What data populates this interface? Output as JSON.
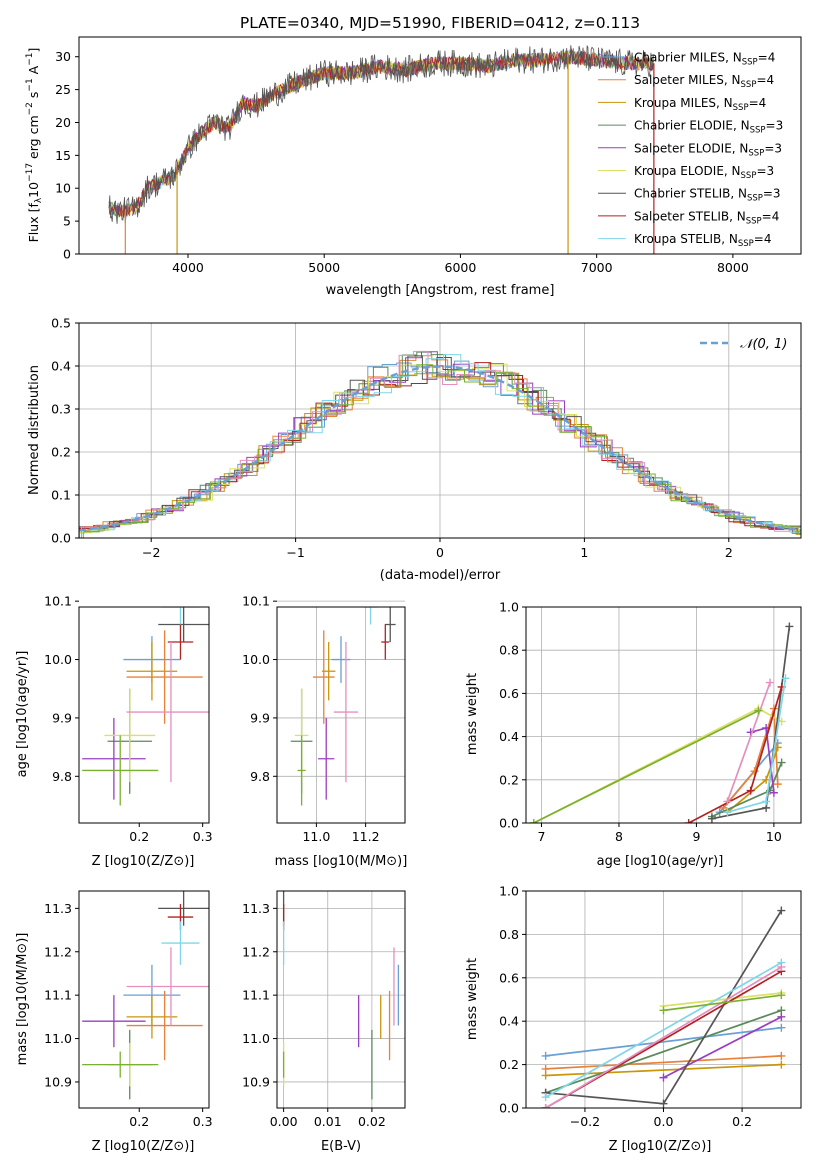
{
  "chart_data": [
    {
      "type": "line",
      "title": "PLATE=0340, MJD=51990, FIBERID=0412, z=0.113",
      "xlabel": "wavelength [Angstrom, rest frame]",
      "ylabel": "Flux [f_λ 10^-17 erg cm^-2 s^-1 A^-1]",
      "xlim": [
        3200,
        8500
      ],
      "ylim": [
        0,
        33
      ],
      "xticks": [
        "4000",
        "5000",
        "6000",
        "7000",
        "8000"
      ],
      "yticks": [
        "0",
        "5",
        "10",
        "15",
        "20",
        "25",
        "30"
      ],
      "legend_position": "top-right",
      "series": [
        {
          "name": "Chabrier MILES, N_SSP=4",
          "color": "#6a9fd4"
        },
        {
          "name": "Salpeter MILES, N_SSP=4",
          "color": "#e8823a"
        },
        {
          "name": "Kroupa MILES, N_SSP=4",
          "color": "#c8960a"
        },
        {
          "name": "Chabrier ELODIE, N_SSP=3",
          "color": "#5a8a5a"
        },
        {
          "name": "Salpeter ELODIE, N_SSP=3",
          "color": "#9a3fc0"
        },
        {
          "name": "Kroupa ELODIE, N_SSP=3",
          "color": "#dde066"
        },
        {
          "name": "Chabrier STELIB, N_SSP=3",
          "color": "#555555"
        },
        {
          "name": "Salpeter STELIB, N_SSP=4",
          "color": "#b22222"
        },
        {
          "name": "Kroupa STELIB, N_SSP=4",
          "color": "#7fd6e8"
        }
      ],
      "continuum": {
        "x": [
          3420,
          3500,
          3600,
          3650,
          3700,
          3800,
          3900,
          3950,
          4000,
          4100,
          4200,
          4300,
          4400,
          4500,
          4600,
          4800,
          5000,
          5200,
          5400,
          5600,
          5800,
          6000,
          6200,
          6400,
          6600,
          6800,
          7000,
          7200,
          7400
        ],
        "y": [
          7,
          6.5,
          6.8,
          8,
          10,
          11,
          12,
          14,
          16,
          18.5,
          20,
          19,
          23,
          22.5,
          24,
          26,
          27.5,
          27.5,
          28.5,
          28,
          29,
          29,
          28.5,
          29.5,
          29.5,
          30,
          29.5,
          29,
          29
        ]
      }
    },
    {
      "type": "line",
      "xlabel": "(data-model)/error",
      "ylabel": "Normed distribution",
      "xlim": [
        -2.5,
        2.5
      ],
      "ylim": [
        0,
        0.5
      ],
      "xticks": [
        "−2",
        "−1",
        "0",
        "1",
        "2"
      ],
      "yticks": [
        "0.0",
        "0.1",
        "0.2",
        "0.3",
        "0.4",
        "0.5"
      ],
      "legend_position": "top-right",
      "reference": {
        "name": "N(0,1)",
        "label": "𝒩(0, 1)",
        "color": "#6a9fd4",
        "mean": 0,
        "sigma": 1
      }
    },
    {
      "type": "scatter",
      "xlabel": "Z [log10(Z/Z⊙)]",
      "ylabel": "age  [log10(age/yr)]",
      "xlim": [
        0.105,
        0.31
      ],
      "ylim": [
        9.72,
        10.09
      ],
      "xticks": [
        "0.2",
        "0.3"
      ],
      "yticks": [
        "9.8",
        "9.9",
        "10.0",
        "10.1"
      ]
    },
    {
      "type": "scatter",
      "xlabel": "mass [log10(M/M⊙)]",
      "xlim": [
        10.84,
        11.36
      ],
      "ylim": [
        9.72,
        10.09
      ],
      "xticks": [
        "11.0",
        "11.2"
      ],
      "yticks": [
        "9.8",
        "9.9",
        "10.0",
        "10.1"
      ]
    },
    {
      "type": "line",
      "xlabel": "age  [log10(age/yr)]",
      "ylabel": "mass weight",
      "xlim": [
        6.8,
        10.35
      ],
      "ylim": [
        0,
        1
      ],
      "xticks": [
        "7",
        "8",
        "9",
        "10"
      ],
      "yticks": [
        "0.0",
        "0.2",
        "0.4",
        "0.6",
        "0.8",
        "1.0"
      ]
    },
    {
      "type": "scatter",
      "xlabel": "Z [log10(Z/Z⊙)]",
      "ylabel": "mass [log10(M/M⊙)]",
      "xlim": [
        0.105,
        0.31
      ],
      "ylim": [
        10.84,
        11.34
      ],
      "xticks": [
        "0.2",
        "0.3"
      ],
      "yticks": [
        "10.9",
        "11.0",
        "11.1",
        "11.2",
        "11.3"
      ]
    },
    {
      "type": "scatter",
      "xlabel": "E(B-V)",
      "xlim": [
        -0.0015,
        0.0275
      ],
      "ylim": [
        10.84,
        11.34
      ],
      "xticks": [
        "0.00",
        "0.01",
        "0.02"
      ],
      "yticks": [
        "10.9",
        "11.0",
        "11.1",
        "11.2",
        "11.3"
      ]
    },
    {
      "type": "line",
      "xlabel": "Z [log10(Z/Z⊙)]",
      "ylabel": "mass weight",
      "xlim": [
        -0.35,
        0.35
      ],
      "ylim": [
        0,
        1
      ],
      "xticks": [
        "−0.2",
        "0.0",
        "0.2"
      ],
      "yticks": [
        "0.0",
        "0.2",
        "0.4",
        "0.6",
        "0.8",
        "1.0"
      ]
    }
  ],
  "models": [
    {
      "color": "#6a9fd4",
      "age": [
        10.0,
        0.04
      ],
      "Z": [
        0.22,
        0.045
      ],
      "mass": [
        11.1,
        0.07
      ],
      "ebv": 0.026,
      "age_w": [
        [
          9.3,
          0.05
        ],
        [
          10.05,
          0.37
        ]
      ],
      "Z_w": [
        [
          -0.3,
          0.24
        ],
        [
          0.3,
          0.37
        ]
      ]
    },
    {
      "color": "#e8823a",
      "age": [
        9.97,
        0.08
      ],
      "Z": [
        0.24,
        0.06
      ],
      "mass": [
        11.03,
        0.08
      ],
      "ebv": 0.024,
      "age_w": [
        [
          9.35,
          0.07
        ],
        [
          9.75,
          0.24
        ],
        [
          10.0,
          0.53
        ],
        [
          10.05,
          0.18
        ]
      ],
      "Z_w": [
        [
          -0.3,
          0.18
        ],
        [
          0.3,
          0.24
        ]
      ]
    },
    {
      "color": "#c8960a",
      "age": [
        9.98,
        0.05
      ],
      "Z": [
        0.22,
        0.04
      ],
      "mass": [
        11.05,
        0.05
      ],
      "ebv": 0.022,
      "age_w": [
        [
          9.4,
          0.05
        ],
        [
          9.9,
          0.2
        ],
        [
          10.05,
          0.35
        ]
      ],
      "Z_w": [
        [
          -0.3,
          0.15
        ],
        [
          0.3,
          0.2
        ]
      ]
    },
    {
      "color": "#5a8a5a",
      "age": [
        9.86,
        0.09
      ],
      "Z": [
        0.185,
        0.035
      ],
      "mass": [
        10.94,
        0.08
      ],
      "ebv": 0.02,
      "age_w": [
        [
          9.2,
          0.03
        ],
        [
          9.95,
          0.15
        ],
        [
          10.1,
          0.28
        ]
      ],
      "Z_w": [
        [
          -0.3,
          0.07
        ],
        [
          0.3,
          0.45
        ]
      ]
    },
    {
      "color": "#9a3fc0",
      "age": [
        9.83,
        0.07
      ],
      "Z": [
        0.16,
        0.05
      ],
      "mass": [
        11.04,
        0.06
      ],
      "ebv": 0.017,
      "age_w": [
        [
          9.7,
          0.42
        ],
        [
          9.9,
          0.44
        ],
        [
          10.0,
          0.14
        ]
      ],
      "Z_w": [
        [
          0.0,
          0.14
        ],
        [
          0.3,
          0.42
        ]
      ]
    },
    {
      "color": "#dde066",
      "age": [
        9.87,
        0.08
      ],
      "Z": [
        0.185,
        0.04
      ],
      "mass": [
        10.94,
        0.05
      ],
      "ebv": 0.0,
      "age_w": [
        [
          6.9,
          0.0
        ],
        [
          9.8,
          0.53
        ],
        [
          10.1,
          0.47
        ]
      ],
      "Z_w": [
        [
          0.0,
          0.47
        ],
        [
          0.3,
          0.53
        ]
      ]
    },
    {
      "color": "#555555",
      "age": [
        10.06,
        0.03
      ],
      "Z": [
        0.27,
        0.04
      ],
      "mass": [
        11.3,
        0.04
      ],
      "ebv": 0.0,
      "age_w": [
        [
          9.2,
          0.02
        ],
        [
          9.9,
          0.07
        ],
        [
          10.2,
          0.91
        ]
      ],
      "Z_w": [
        [
          -0.3,
          0.07
        ],
        [
          0.0,
          0.02
        ],
        [
          0.3,
          0.91
        ]
      ]
    },
    {
      "color": "#b22222",
      "age": [
        10.03,
        0.03
      ],
      "Z": [
        0.265,
        0.02
      ],
      "mass": [
        11.28,
        0.03
      ],
      "ebv": 0.0,
      "age_w": [
        [
          8.9,
          0.0
        ],
        [
          9.7,
          0.15
        ],
        [
          10.1,
          0.63
        ]
      ],
      "Z_w": [
        [
          -0.3,
          0.0
        ],
        [
          0.3,
          0.63
        ]
      ]
    },
    {
      "color": "#7fd6e8",
      "age": [
        10.09,
        0.03
      ],
      "Z": [
        0.265,
        0.03
      ],
      "mass": [
        11.22,
        0.05
      ],
      "ebv": 0.0,
      "age_w": [
        [
          9.4,
          0.05
        ],
        [
          9.9,
          0.1
        ],
        [
          10.15,
          0.67
        ]
      ],
      "Z_w": [
        [
          -0.3,
          0.05
        ],
        [
          0.3,
          0.67
        ]
      ]
    },
    {
      "color": "#e58fbf",
      "age": [
        9.91,
        0.12
      ],
      "Z": [
        0.25,
        0.07
      ],
      "mass": [
        11.12,
        0.09
      ],
      "ebv": 0.025,
      "age_w": [
        [
          9.4,
          0.1
        ],
        [
          9.95,
          0.65
        ]
      ],
      "Z_w": [
        [
          -0.3,
          0.0
        ],
        [
          0.3,
          0.65
        ]
      ]
    },
    {
      "color": "#7ab030",
      "age": [
        9.81,
        0.06
      ],
      "Z": [
        0.17,
        0.06
      ],
      "mass": [
        10.94,
        0.03
      ],
      "ebv": 0.0,
      "age_w": [
        [
          6.9,
          0.0
        ],
        [
          9.8,
          0.52
        ]
      ],
      "Z_w": [
        [
          0.0,
          0.45
        ],
        [
          0.3,
          0.52
        ]
      ]
    }
  ]
}
